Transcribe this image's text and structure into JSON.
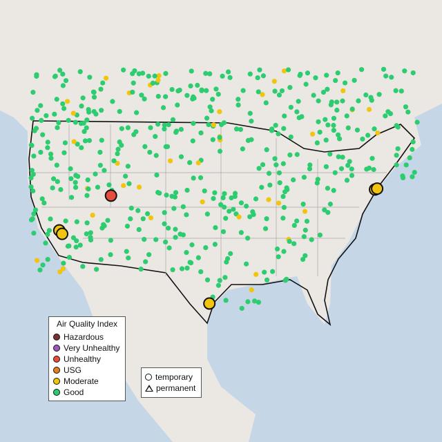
{
  "legend_aqi": {
    "title": "Air Quality Index",
    "items": [
      {
        "label": "Hazardous",
        "color": "#7e2f2f"
      },
      {
        "label": "Very Unhealthy",
        "color": "#9b59b6"
      },
      {
        "label": "Unhealthy",
        "color": "#e74c3c"
      },
      {
        "label": "USG",
        "color": "#e67e22"
      },
      {
        "label": "Moderate",
        "color": "#f1c40f"
      },
      {
        "label": "Good",
        "color": "#2ecc71"
      }
    ]
  },
  "legend_type": {
    "items": [
      {
        "label": "temporary",
        "shape": "circle"
      },
      {
        "label": "permanent",
        "shape": "triangle"
      }
    ]
  },
  "colors": {
    "water": "#c5d6e6",
    "land": "#ebe7e3",
    "border": "#111111",
    "state_lines": "#a8a8a8"
  },
  "highlighted_monitors": [
    {
      "category": "Unhealthy",
      "type": "temporary",
      "lat": 40.2,
      "lon": -111.5
    },
    {
      "category": "Moderate",
      "type": "temporary",
      "lat": 36.2,
      "lon": -118.8
    },
    {
      "category": "Moderate",
      "type": "temporary",
      "lat": 35.8,
      "lon": -118.4
    },
    {
      "category": "Moderate",
      "type": "temporary",
      "lat": 40.9,
      "lon": -74.2
    },
    {
      "category": "Moderate",
      "type": "temporary",
      "lat": 41.0,
      "lon": -73.9
    },
    {
      "category": "Moderate",
      "type": "temporary",
      "lat": 27.8,
      "lon": -97.6
    }
  ]
}
